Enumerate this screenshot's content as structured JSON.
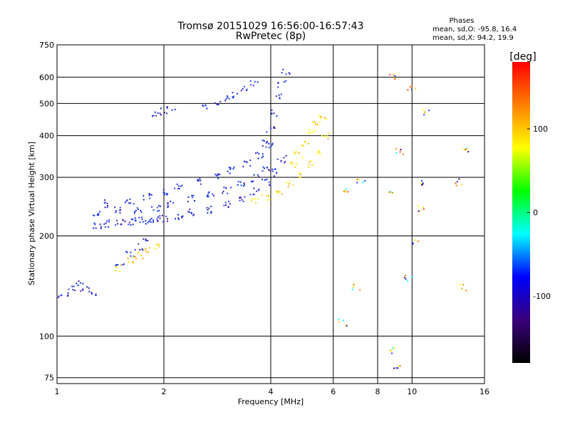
{
  "chart_data": {
    "type": "scatter",
    "title": "Tromsø 20151029 16:56:00-16:57:43",
    "subtitle": "RwPretec (8p)",
    "header": {
      "title": "Phases",
      "line1": "mean, sd,O: -95.8, 16.4",
      "line2": "mean, sd,X:  94.2, 19.9"
    },
    "xlabel": "Frequency [MHz]",
    "ylabel": "Stationary phase Virtual Height [km]",
    "x_scale": "log",
    "y_scale": "log",
    "xlim": [
      1,
      16
    ],
    "ylim": [
      72,
      750
    ],
    "x_ticks": [
      1,
      2,
      4,
      6,
      8,
      10,
      16
    ],
    "x_tick_labels": [
      "1",
      "2",
      "4",
      "6",
      "8",
      "10",
      "16"
    ],
    "y_ticks": [
      75,
      100,
      200,
      300,
      400,
      500,
      600,
      750
    ],
    "y_tick_labels": [
      "75",
      "100",
      "200",
      "300",
      "400",
      "500",
      "600",
      "750"
    ],
    "grid": true,
    "colorbar": {
      "label": "[deg]",
      "range": [
        -180,
        180
      ],
      "ticks": [
        100,
        0,
        -100
      ],
      "tick_labels": [
        "100",
        "0",
        "-100"
      ],
      "colors": [
        "#000000",
        "#3a007a",
        "#0000ff",
        "#00ffff",
        "#00ff00",
        "#ffff00",
        "#ff8000",
        "#ff0000"
      ]
    },
    "series": [
      {
        "traces": [
          {
            "x": [
              1.0,
              1.05,
              1.1,
              1.15,
              1.2,
              1.25
            ],
            "y": [
              132,
              135,
              140,
              145,
              138,
              134
            ]
          },
          {
            "x": [
              1.3,
              1.4,
              1.5,
              1.6,
              1.7,
              1.8,
              1.9,
              2.0,
              2.2,
              2.4,
              2.7,
              3.0,
              3.3,
              3.6,
              3.9,
              4.1,
              4.3
            ],
            "y": [
              215,
              218,
              220,
              221,
              222,
              223,
              224,
              226,
              230,
              235,
              240,
              248,
              258,
              272,
              290,
              310,
              340
            ]
          },
          {
            "x": [
              1.3,
              1.5,
              1.7,
              1.9,
              2.1,
              2.4,
              2.7,
              3.0,
              3.3,
              3.6,
              3.9
            ],
            "y": [
              235,
              238,
              240,
              243,
              250,
              258,
              265,
              275,
              285,
              298,
              315
            ]
          },
          {
            "x": [
              1.4,
              1.6,
              1.8,
              2.0,
              2.2,
              2.5,
              2.8,
              3.1,
              3.4,
              3.7,
              4.0
            ],
            "y": [
              250,
              255,
              262,
              270,
              280,
              290,
              300,
              315,
              330,
              350,
              375
            ]
          },
          {
            "x": [
              1.9,
              2.0,
              2.1
            ],
            "y": [
              465,
              472,
              480
            ]
          },
          {
            "x": [
              2.6,
              2.8,
              3.0,
              3.2,
              3.4,
              3.6
            ],
            "y": [
              490,
              500,
              515,
              530,
              550,
              575
            ]
          },
          {
            "x": [
              3.9,
              4.0,
              4.1,
              4.2,
              4.3,
              4.4
            ],
            "y": [
              380,
              420,
              470,
              520,
              570,
              620
            ]
          },
          {
            "x": [
              1.5,
              1.6,
              1.7,
              1.8
            ],
            "y": [
              165,
              175,
              185,
              195
            ]
          }
        ],
        "colors": [
          "#1f3cff",
          "#0a2ee0",
          "#2a40ff",
          "#4a1aa8"
        ]
      },
      {
        "traces": [
          {
            "x": [
              3.6,
              3.9,
              4.2,
              4.5,
              4.8,
              5.1,
              5.4,
              5.7
            ],
            "y": [
              255,
              262,
              272,
              285,
              305,
              330,
              360,
              400
            ]
          },
          {
            "x": [
              4.6,
              4.8,
              5.0,
              5.2,
              5.4,
              5.6
            ],
            "y": [
              330,
              350,
              380,
              410,
              440,
              460
            ]
          },
          {
            "x": [
              1.5,
              1.6,
              1.7,
              1.8,
              1.9
            ],
            "y": [
              160,
              170,
              175,
              180,
              185
            ]
          }
        ],
        "colors": [
          "#ffff00",
          "#ffd400",
          "#ffa500"
        ]
      },
      {
        "traces": [
          {
            "x": [
              6.4,
              7.2,
              8.6,
              8.8,
              9.2,
              10.0,
              10.8,
              11.0,
              13.5,
              14.0
            ],
            "y": [
              270,
              290,
              270,
              600,
              360,
              560,
              290,
              470,
              290,
              360
            ]
          },
          {
            "x": [
              6.4,
              7.0,
              8.7,
              9.0,
              9.8,
              10.2,
              10.6,
              13.8
            ],
            "y": [
              110,
              140,
              90,
              80,
              150,
              190,
              240,
              140
            ]
          }
        ],
        "colors": [
          "#ff4000",
          "#ff8000",
          "#ffd400",
          "#ffff00",
          "#00ffff",
          "#1f3cff",
          "#3a007a"
        ]
      }
    ]
  }
}
